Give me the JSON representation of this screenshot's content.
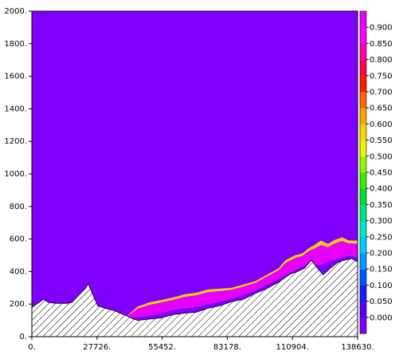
{
  "chart_data": {
    "type": "heatmap",
    "title": "",
    "xlabel": "",
    "ylabel": "",
    "x_ticks": [
      "0.",
      "27726.",
      "55452.",
      "83178.",
      "110904.",
      "138630."
    ],
    "y_ticks": [
      "0.",
      "200.",
      "400.",
      "600.",
      "800.",
      "1000.",
      "1200.",
      "1400.",
      "1600.",
      "1800.",
      "2000."
    ],
    "xlim": [
      0,
      138630
    ],
    "ylim": [
      0,
      2000
    ],
    "background_value": 0.0,
    "colorbar": {
      "ticks": [
        "0.000",
        "0.050",
        "0.100",
        "0.150",
        "0.200",
        "0.250",
        "0.300",
        "0.350",
        "0.400",
        "0.450",
        "0.500",
        "0.550",
        "0.600",
        "0.650",
        "0.700",
        "0.750",
        "0.800",
        "0.850",
        "0.900"
      ],
      "colors": [
        "#8000ff",
        "#5a00ff",
        "#1a1aff",
        "#0055ff",
        "#0099ff",
        "#00ccff",
        "#00e6cc",
        "#00e680",
        "#00dd33",
        "#33ee00",
        "#99f200",
        "#e6f500",
        "#ffd700",
        "#ffa500",
        "#ff6600",
        "#ff1a00",
        "#ff0055",
        "#ff00aa",
        "#ff00ff",
        "#e600ff"
      ]
    },
    "terrain": {
      "x": [
        0,
        5000,
        7000,
        10000,
        15000,
        17000,
        23000,
        24000,
        28000,
        31000,
        35000,
        40000,
        43000,
        45000,
        48000,
        55000,
        60000,
        65000,
        70000,
        75000,
        80000,
        85000,
        90000,
        95000,
        100000,
        105000,
        110000,
        113000,
        116000,
        119000,
        121000,
        124000,
        127000,
        130000,
        133000,
        136000,
        138630
      ],
      "y": [
        180,
        230,
        210,
        205,
        205,
        210,
        300,
        325,
        190,
        175,
        160,
        130,
        110,
        100,
        105,
        115,
        135,
        145,
        150,
        175,
        190,
        215,
        230,
        265,
        295,
        335,
        385,
        400,
        420,
        470,
        430,
        380,
        420,
        455,
        470,
        480,
        460
      ]
    },
    "plume_bottom": {
      "x": [
        40000,
        45000,
        50000,
        55000,
        60000,
        65000,
        70000,
        75000,
        80000,
        85000,
        90000,
        95000,
        100000,
        105000,
        110000,
        115000,
        118000,
        122000,
        125000,
        130000,
        135000,
        138630
      ],
      "y": [
        115,
        120,
        130,
        145,
        165,
        175,
        185,
        200,
        215,
        235,
        255,
        285,
        320,
        355,
        395,
        430,
        450,
        440,
        455,
        480,
        500,
        490
      ]
    },
    "plume_top": {
      "x": [
        40000,
        45000,
        50000,
        55000,
        60000,
        65000,
        70000,
        75000,
        80000,
        85000,
        90000,
        95000,
        100000,
        105000,
        108000,
        112000,
        115000,
        118000,
        120000,
        123000,
        126000,
        129000,
        132000,
        135000,
        138630
      ],
      "y": [
        120,
        185,
        210,
        225,
        240,
        260,
        270,
        290,
        295,
        300,
        320,
        340,
        380,
        420,
        470,
        500,
        510,
        545,
        560,
        590,
        570,
        595,
        610,
        590,
        590
      ]
    },
    "edge_band_value": 0.55
  }
}
